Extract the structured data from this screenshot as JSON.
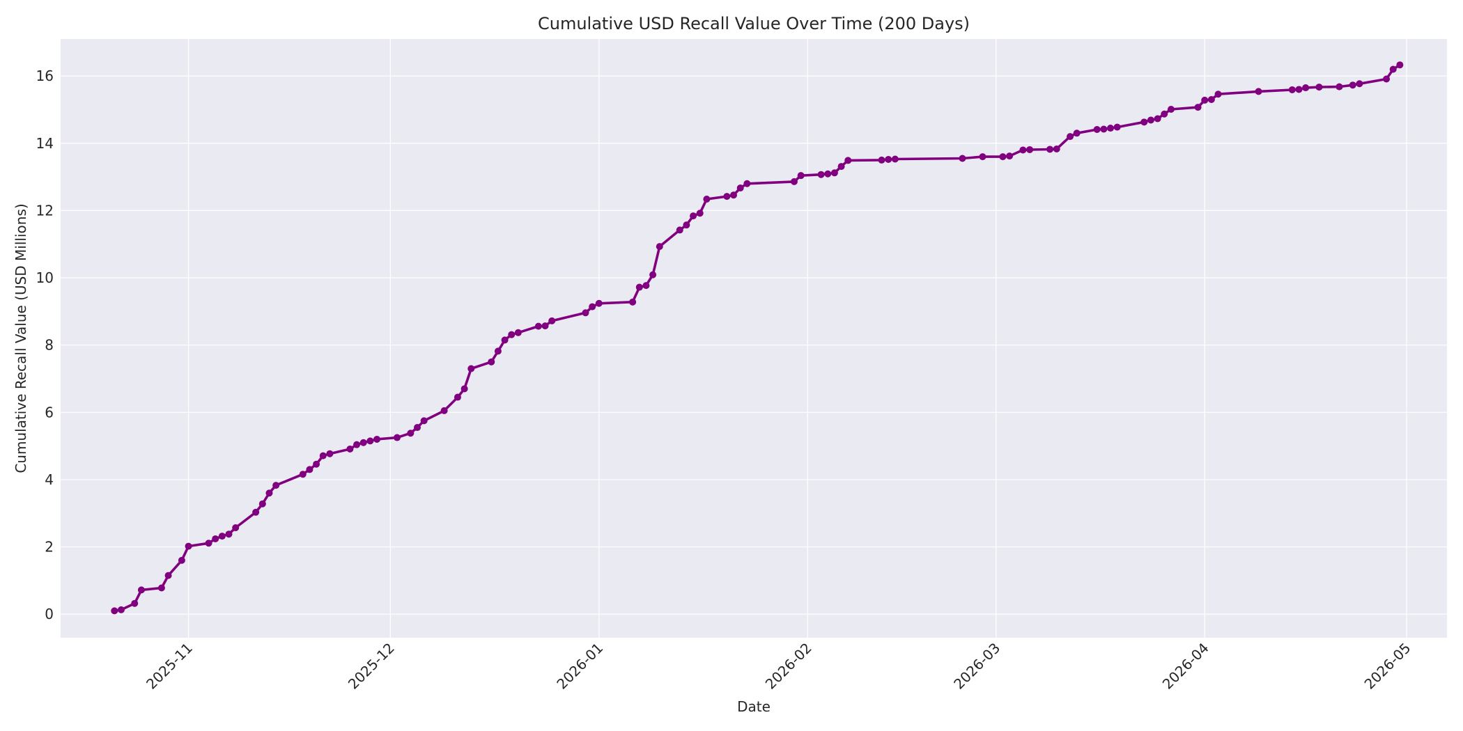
{
  "chart_data": {
    "type": "line",
    "title": "Cumulative USD Recall Value Over Time (200 Days)",
    "xlabel": "Date",
    "ylabel": "Cumulative Recall Value (USD Millions)",
    "xlim": [
      "2025-10-13",
      "2026-05-07"
    ],
    "ylim": [
      -0.7,
      17.1
    ],
    "grid": true,
    "legend": "none",
    "colors": {
      "line": "#800080",
      "marker": "#800080",
      "plot_bg": "#eaeaf2",
      "grid": "#ffffff"
    },
    "x_ticks": [
      "2025-11",
      "2025-12",
      "2026-01",
      "2026-02",
      "2026-03",
      "2026-04",
      "2026-05"
    ],
    "y_ticks": [
      0,
      2,
      4,
      6,
      8,
      10,
      12,
      14,
      16
    ],
    "series": [
      {
        "x": [
          "2025-10-21",
          "2025-10-22",
          "2025-10-24",
          "2025-10-25",
          "2025-10-28",
          "2025-10-29",
          "2025-10-31",
          "2025-11-01",
          "2025-11-04",
          "2025-11-05",
          "2025-11-06",
          "2025-11-07",
          "2025-11-08",
          "2025-11-11",
          "2025-11-12",
          "2025-11-13",
          "2025-11-14",
          "2025-11-18",
          "2025-11-19",
          "2025-11-20",
          "2025-11-21",
          "2025-11-22",
          "2025-11-25",
          "2025-11-26",
          "2025-11-27",
          "2025-11-28",
          "2025-11-29",
          "2025-12-02",
          "2025-12-04",
          "2025-12-05",
          "2025-12-06",
          "2025-12-09",
          "2025-12-11",
          "2025-12-12",
          "2025-12-13",
          "2025-12-16",
          "2025-12-17",
          "2025-12-18",
          "2025-12-19",
          "2025-12-20",
          "2025-12-23",
          "2025-12-24",
          "2025-12-25",
          "2025-12-30",
          "2025-12-31",
          "2026-01-01",
          "2026-01-06",
          "2026-01-07",
          "2026-01-08",
          "2026-01-09",
          "2026-01-10",
          "2026-01-13",
          "2026-01-14",
          "2026-01-15",
          "2026-01-16",
          "2026-01-17",
          "2026-01-20",
          "2026-01-21",
          "2026-01-22",
          "2026-01-23",
          "2026-01-30",
          "2026-01-31",
          "2026-02-03",
          "2026-02-04",
          "2026-02-05",
          "2026-02-06",
          "2026-02-07",
          "2026-02-12",
          "2026-02-13",
          "2026-02-14",
          "2026-02-24",
          "2026-02-27",
          "2026-03-02",
          "2026-03-03",
          "2026-03-05",
          "2026-03-06",
          "2026-03-09",
          "2026-03-10",
          "2026-03-12",
          "2026-03-13",
          "2026-03-16",
          "2026-03-17",
          "2026-03-18",
          "2026-03-19",
          "2026-03-23",
          "2026-03-24",
          "2026-03-25",
          "2026-03-26",
          "2026-03-27",
          "2026-03-31",
          "2026-04-01",
          "2026-04-02",
          "2026-04-03",
          "2026-04-09",
          "2026-04-14",
          "2026-04-15",
          "2026-04-16",
          "2026-04-18",
          "2026-04-21",
          "2026-04-23",
          "2026-04-24",
          "2026-04-28",
          "2026-04-29",
          "2026-04-30"
        ],
        "y": [
          0.1,
          0.13,
          0.32,
          0.72,
          0.78,
          1.15,
          1.6,
          2.02,
          2.11,
          2.24,
          2.32,
          2.38,
          2.57,
          3.03,
          3.28,
          3.6,
          3.83,
          4.16,
          4.3,
          4.46,
          4.71,
          4.77,
          4.91,
          5.04,
          5.1,
          5.15,
          5.2,
          5.25,
          5.38,
          5.55,
          5.75,
          6.05,
          6.45,
          6.7,
          7.3,
          7.5,
          7.82,
          8.15,
          8.31,
          8.37,
          8.56,
          8.57,
          8.72,
          8.96,
          9.14,
          9.24,
          9.28,
          9.72,
          9.77,
          10.09,
          10.93,
          11.42,
          11.57,
          11.84,
          11.92,
          12.34,
          12.42,
          12.46,
          12.67,
          12.8,
          12.86,
          13.04,
          13.07,
          13.09,
          13.12,
          13.31,
          13.49,
          13.5,
          13.52,
          13.53,
          13.55,
          13.6,
          13.6,
          13.62,
          13.8,
          13.81,
          13.82,
          13.83,
          14.2,
          14.3,
          14.41,
          14.42,
          14.45,
          14.48,
          14.63,
          14.69,
          14.73,
          14.87,
          15.01,
          15.07,
          15.28,
          15.3,
          15.46,
          15.54,
          15.59,
          15.6,
          15.65,
          15.67,
          15.68,
          15.73,
          15.77,
          15.91,
          16.2,
          16.33
        ]
      }
    ]
  }
}
